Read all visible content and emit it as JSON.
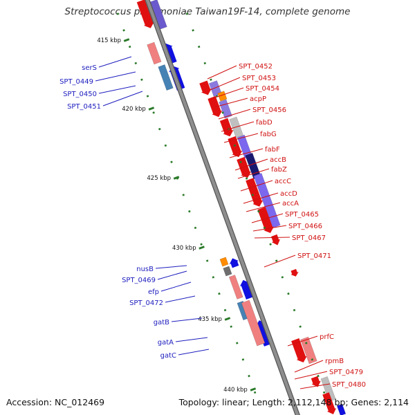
{
  "title": "Streptococcus pneumoniae Taiwan19F-14, complete genome",
  "accession": "Accession: NC_012469",
  "topology": "Topology: linear; Length: 2,112,148 bp; Genes: 2,114",
  "colors": {
    "left_label": "#1c1cbf",
    "right_label": "#d01010",
    "tick": "#2a7a2a",
    "backbone": "#8e8e8e",
    "gene_red": "#e01010",
    "gene_blue": "#1010e0",
    "gene_orange": "#ff8c00"
  },
  "ticks": [
    {
      "label": "415 kbp"
    },
    {
      "label": "420 kbp"
    },
    {
      "label": "425 kbp"
    },
    {
      "label": "430 kbp"
    },
    {
      "label": "435 kbp"
    },
    {
      "label": "440 kbp"
    }
  ],
  "left_genes": [
    {
      "name": "serS"
    },
    {
      "name": "SPT_0449"
    },
    {
      "name": "SPT_0450"
    },
    {
      "name": "SPT_0451"
    },
    {
      "name": "nusB"
    },
    {
      "name": "SPT_0469"
    },
    {
      "name": "efp"
    },
    {
      "name": "SPT_0472"
    },
    {
      "name": "gatB"
    },
    {
      "name": "gatA"
    },
    {
      "name": "gatC"
    }
  ],
  "right_genes": [
    {
      "name": "SPT_0452"
    },
    {
      "name": "SPT_0453"
    },
    {
      "name": "SPT_0454"
    },
    {
      "name": "acpP"
    },
    {
      "name": "SPT_0456"
    },
    {
      "name": "fabD"
    },
    {
      "name": "fabG"
    },
    {
      "name": "fabF"
    },
    {
      "name": "accB"
    },
    {
      "name": "fabZ"
    },
    {
      "name": "accC"
    },
    {
      "name": "accD"
    },
    {
      "name": "accA"
    },
    {
      "name": "SPT_0465"
    },
    {
      "name": "SPT_0466"
    },
    {
      "name": "SPT_0467"
    },
    {
      "name": "SPT_0471"
    },
    {
      "name": "prfC"
    },
    {
      "name": "rpmB"
    },
    {
      "name": "SPT_0479"
    },
    {
      "name": "SPT_0480"
    }
  ]
}
